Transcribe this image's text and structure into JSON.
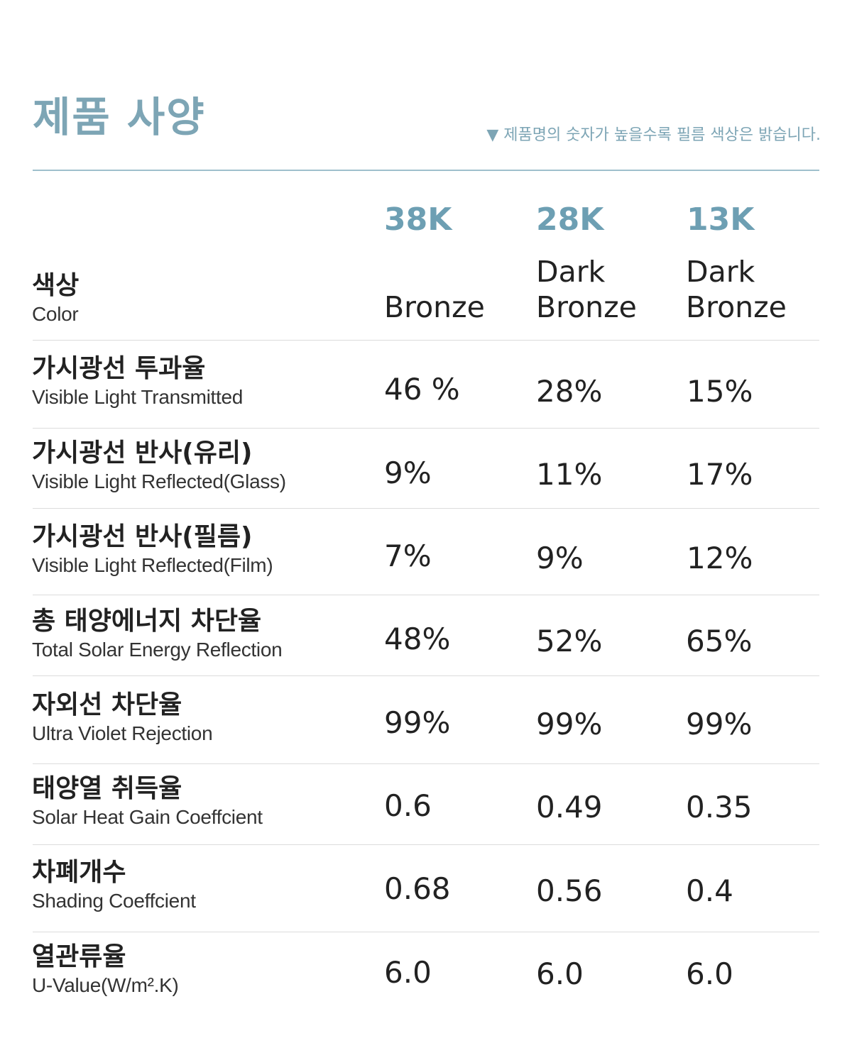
{
  "page_title": "제품 사양",
  "note": "▼ 제품명의 숫자가 높을수록 필름 색상은 밝습니다.",
  "colors": {
    "accent": "#7da5b5",
    "text": "#222222",
    "divider": "#dcdcdc"
  },
  "columns": [
    {
      "code": "38K",
      "color": "Bronze"
    },
    {
      "code": "28K",
      "color": "Dark\nBronze"
    },
    {
      "code": "13K",
      "color": "Dark\nBronze"
    }
  ],
  "header_label": {
    "ko": "색상",
    "en": "Color"
  },
  "rows": [
    {
      "ko": "가시광선 투과율",
      "en": "Visible Light Transmitted",
      "values": [
        "46 %",
        "28%",
        "15%"
      ]
    },
    {
      "ko": "가시광선 반사(유리)",
      "en": "Visible Light Reflected(Glass)",
      "values": [
        "9%",
        "11%",
        "17%"
      ]
    },
    {
      "ko": "가시광선 반사(필름)",
      "en": "Visible Light Reflected(Film)",
      "values": [
        "7%",
        "9%",
        "12%"
      ]
    },
    {
      "ko": "총 태양에너지 차단율",
      "en": "Total Solar Energy Reflection",
      "values": [
        "48%",
        "52%",
        "65%"
      ]
    },
    {
      "ko": "자외선 차단율",
      "en": "Ultra Violet Rejection",
      "values": [
        "99%",
        "99%",
        "99%"
      ]
    },
    {
      "ko": "태양열 취득율",
      "en": "Solar Heat Gain Coeffcient",
      "values": [
        "0.6",
        "0.49",
        "0.35"
      ]
    },
    {
      "ko": "차폐개수",
      "en": "Shading Coeffcient",
      "values": [
        "0.68",
        "0.56",
        "0.4"
      ]
    },
    {
      "ko": "열관류율",
      "en": "U-Value(W/m².K)",
      "values": [
        "6.0",
        "6.0",
        "6.0"
      ]
    }
  ]
}
